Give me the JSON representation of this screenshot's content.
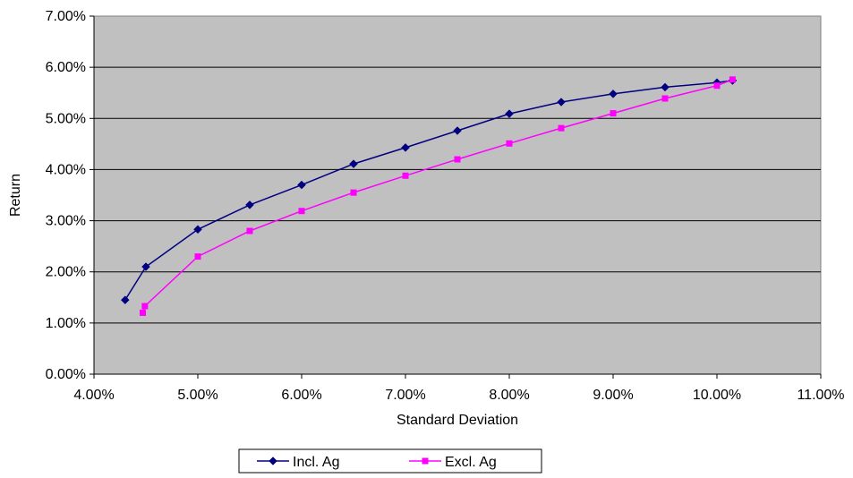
{
  "chart_data": {
    "type": "line",
    "title": "",
    "xlabel": "Standard Deviation",
    "ylabel": "Return",
    "xlim": [
      0.04,
      0.11
    ],
    "ylim": [
      0.0,
      0.07
    ],
    "x_ticks": [
      "4.00%",
      "5.00%",
      "6.00%",
      "7.00%",
      "8.00%",
      "9.00%",
      "10.00%",
      "11.00%"
    ],
    "y_ticks": [
      "0.00%",
      "1.00%",
      "2.00%",
      "3.00%",
      "4.00%",
      "5.00%",
      "6.00%",
      "7.00%"
    ],
    "grid": "horizontal",
    "plot_background": "#c0c0c0",
    "legend_position": "bottom",
    "series": [
      {
        "name": "Incl. Ag",
        "color": "#000080",
        "marker": "diamond",
        "points": [
          [
            0.043,
            0.0145
          ],
          [
            0.045,
            0.021
          ],
          [
            0.05,
            0.0283
          ],
          [
            0.055,
            0.0331
          ],
          [
            0.06,
            0.037
          ],
          [
            0.065,
            0.0411
          ],
          [
            0.07,
            0.0443
          ],
          [
            0.075,
            0.0476
          ],
          [
            0.08,
            0.0509
          ],
          [
            0.085,
            0.0532
          ],
          [
            0.09,
            0.0548
          ],
          [
            0.095,
            0.0561
          ],
          [
            0.1,
            0.057
          ],
          [
            0.1015,
            0.0574
          ]
        ]
      },
      {
        "name": "Excl. Ag",
        "color": "#ff00ff",
        "marker": "square",
        "points": [
          [
            0.0447,
            0.012
          ],
          [
            0.0449,
            0.0133
          ],
          [
            0.05,
            0.023
          ],
          [
            0.055,
            0.028
          ],
          [
            0.06,
            0.0319
          ],
          [
            0.065,
            0.0355
          ],
          [
            0.07,
            0.0388
          ],
          [
            0.075,
            0.042
          ],
          [
            0.08,
            0.0451
          ],
          [
            0.085,
            0.0481
          ],
          [
            0.09,
            0.051
          ],
          [
            0.095,
            0.0539
          ],
          [
            0.1,
            0.0564
          ],
          [
            0.1015,
            0.0576
          ]
        ]
      }
    ]
  }
}
